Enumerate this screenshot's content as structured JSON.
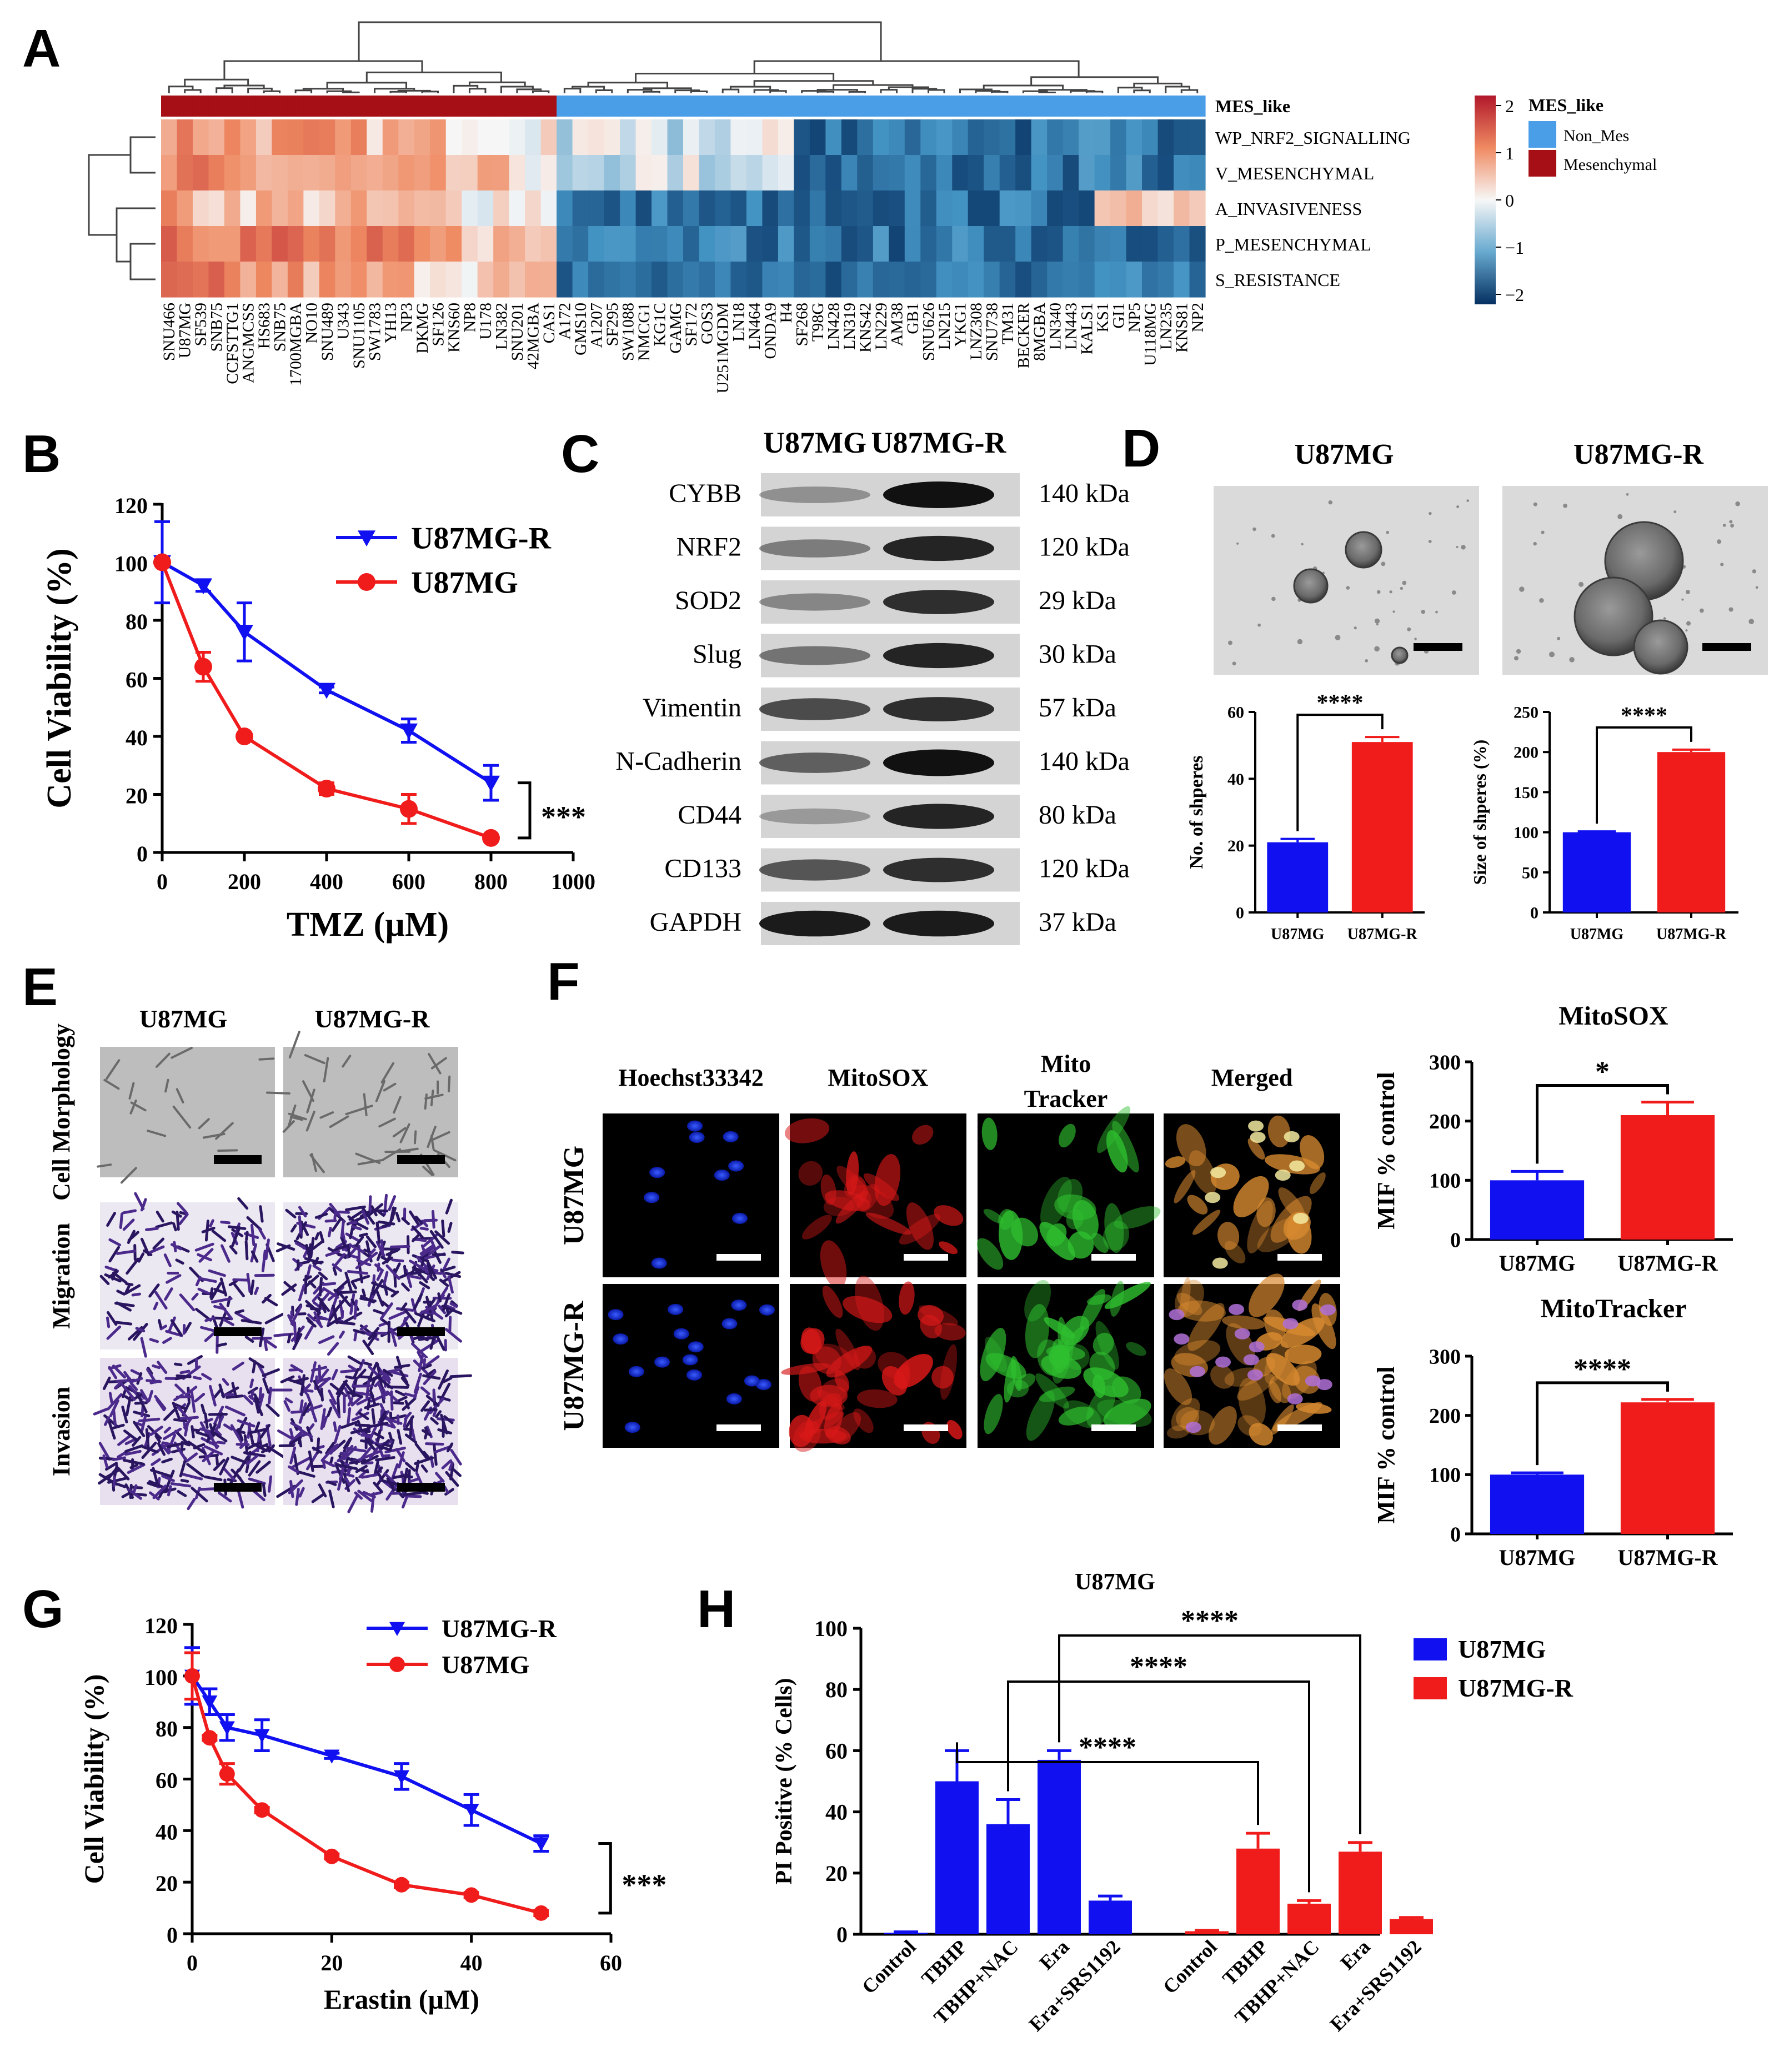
{
  "panels": {
    "A": "A",
    "B": "B",
    "C": "C",
    "D": "D",
    "E": "E",
    "F": "F",
    "G": "G",
    "H": "H"
  },
  "colors": {
    "blue": "#1010f0",
    "red": "#f01c1c",
    "heat_high": "#b2182b",
    "heat_mid": "#f7f7f7",
    "heat_low": "#053061",
    "mes_bar": "#a50f15",
    "nonmes_bar": "#4a9ee8"
  },
  "heatmap": {
    "annotation_label": "MES_like",
    "rows": [
      "WP_NRF2_SIGNALLING",
      "V_MESENCHYMAL",
      "A_INVASIVENESS",
      "P_MESENCHYMAL",
      "S_RESISTANCE"
    ],
    "columns": [
      "SNU466",
      "U87MG",
      "SF539",
      "SNB75",
      "CCFSTTG1",
      "ANGMCSS",
      "HS683",
      "SNB75",
      "1700MGBA",
      "NO10",
      "SNU489",
      "U343",
      "SNU1105",
      "SW1783",
      "YH13",
      "NP3",
      "DKMG",
      "SF126",
      "KNS60",
      "NP8",
      "U178",
      "LN382",
      "SNU201",
      "42MGBA",
      "CAS1",
      "A172",
      "GMS10",
      "A1207",
      "SF295",
      "SW1088",
      "NMCG1",
      "KG1C",
      "GAMG",
      "SF172",
      "GOS3",
      "U251MGDM",
      "LN18",
      "LN464",
      "ONDA9",
      "H4",
      "SF268",
      "T98G",
      "LN428",
      "LN319",
      "KNS42",
      "LN229",
      "AM38",
      "GB1",
      "SNU626",
      "LN215",
      "YKG1",
      "LNZ308",
      "SNU738",
      "TM31",
      "BECKER",
      "8MGBA",
      "LN340",
      "LN443",
      "KALS1",
      "KS1",
      "GI1",
      "NP5",
      "U118MG",
      "LN235",
      "KNS81",
      "NP2"
    ],
    "n_mesenchymal": 25,
    "legend_title": "MES_like",
    "legend_items": [
      "Non_Mes",
      "Mesenchymal"
    ],
    "colorbar_ticks": [
      "2",
      "1",
      "0",
      "−1",
      "−2"
    ]
  },
  "western": {
    "col_labels": [
      "U87MG",
      "U87MG-R"
    ],
    "proteins": [
      "CYBB",
      "NRF2",
      "SOD2",
      "Slug",
      "Vimentin",
      "N-Cadherin",
      "CD44",
      "CD133",
      "GAPDH"
    ],
    "sizes": [
      "140 kDa",
      "120 kDa",
      "29 kDa",
      "30 kDa",
      "57 kDa",
      "140 kDa",
      "80 kDa",
      "120 kDa",
      "37 kDa"
    ]
  },
  "sphere": {
    "col_labels": [
      "U87MG",
      "U87MG-R"
    ]
  },
  "panel_e": {
    "col_labels": [
      "U87MG",
      "U87MG-R"
    ],
    "row_labels": [
      "Cell Morphology",
      "Migration",
      "Invasion"
    ]
  },
  "panel_f": {
    "col_labels": [
      "Hoechst33342",
      "MitoSOX",
      "Mito Tracker",
      "Merged"
    ],
    "row_labels": [
      "U87MG",
      "U87MG-R"
    ]
  },
  "chart_data": [
    {
      "panel": "B",
      "type": "line",
      "xlabel": "TMZ (µM)",
      "ylabel": "Cell Viability (%)",
      "xlim": [
        0,
        1000
      ],
      "ylim": [
        0,
        120
      ],
      "xticks": [
        0,
        200,
        400,
        600,
        800,
        1000
      ],
      "yticks": [
        0,
        20,
        40,
        60,
        80,
        100,
        120
      ],
      "legend": "top-right",
      "significance": "***",
      "series": [
        {
          "name": "U87MG-R",
          "color": "#1010f0",
          "marker": "triangle-down",
          "x": [
            0,
            100,
            200,
            400,
            600,
            800
          ],
          "y": [
            100,
            92,
            76,
            56,
            42,
            24
          ],
          "err": [
            14,
            2,
            10,
            1,
            4,
            6
          ]
        },
        {
          "name": "U87MG",
          "color": "#f01c1c",
          "marker": "circle",
          "x": [
            0,
            100,
            200,
            400,
            600,
            800
          ],
          "y": [
            100,
            64,
            40,
            22,
            15,
            5
          ],
          "err": [
            1,
            5,
            1,
            2,
            5,
            1
          ]
        }
      ]
    },
    {
      "panel": "D-left",
      "type": "bar",
      "categories": [
        "U87MG",
        "U87MG-R"
      ],
      "values": [
        21,
        51
      ],
      "errors": [
        1,
        1.5
      ],
      "ylabel": "No. of shperes",
      "ylim": [
        0,
        60
      ],
      "yticks": [
        0,
        20,
        40,
        60
      ],
      "significance": "****"
    },
    {
      "panel": "D-right",
      "type": "bar",
      "categories": [
        "U87MG",
        "U87MG-R"
      ],
      "values": [
        100,
        200
      ],
      "errors": [
        1,
        3
      ],
      "ylabel": "Size of shperes (%)",
      "ylim": [
        0,
        250
      ],
      "yticks": [
        0,
        50,
        100,
        150,
        200,
        250
      ],
      "significance": "****"
    },
    {
      "panel": "F-top",
      "type": "bar",
      "title": "MitoSOX",
      "categories": [
        "U87MG",
        "U87MG-R"
      ],
      "values": [
        100,
        210
      ],
      "errors": [
        15,
        22
      ],
      "ylabel": "MIF % control",
      "ylim": [
        0,
        300
      ],
      "yticks": [
        0,
        100,
        200,
        300
      ],
      "significance": "*"
    },
    {
      "panel": "F-bottom",
      "type": "bar",
      "title": "MitoTracker",
      "categories": [
        "U87MG",
        "U87MG-R"
      ],
      "values": [
        100,
        222
      ],
      "errors": [
        3,
        5
      ],
      "ylabel": "MIF % control",
      "ylim": [
        0,
        300
      ],
      "yticks": [
        0,
        100,
        200,
        300
      ],
      "significance": "****"
    },
    {
      "panel": "G",
      "type": "line",
      "xlabel": "Erastin (µM)",
      "ylabel": "Cell Viability (%)",
      "xlim": [
        0,
        60
      ],
      "ylim": [
        0,
        120
      ],
      "xticks": [
        0,
        20,
        40,
        60
      ],
      "yticks": [
        0,
        20,
        40,
        60,
        80,
        100,
        120
      ],
      "legend": "top-right",
      "significance": "***",
      "series": [
        {
          "name": "U87MG-R",
          "color": "#1010f0",
          "marker": "triangle-down",
          "x": [
            0,
            2.5,
            5,
            10,
            20,
            30,
            40,
            50
          ],
          "y": [
            100,
            90,
            80,
            77,
            69,
            61,
            48,
            35
          ],
          "err": [
            11,
            5,
            5,
            6,
            1,
            5,
            6,
            3
          ]
        },
        {
          "name": "U87MG",
          "color": "#f01c1c",
          "marker": "circle",
          "x": [
            0,
            2.5,
            5,
            10,
            20,
            30,
            40,
            50
          ],
          "y": [
            100,
            76,
            62,
            48,
            30,
            19,
            15,
            8
          ],
          "err": [
            9,
            1,
            4,
            1,
            1,
            1,
            1,
            1
          ]
        }
      ]
    },
    {
      "panel": "H",
      "type": "bar",
      "title": "U87MG",
      "categories": [
        "Control",
        "TBHP",
        "TBHP+NAC",
        "Era",
        "Era+SRS1192"
      ],
      "ylabel": "PI Positive (% Cells)",
      "ylim": [
        0,
        100
      ],
      "yticks": [
        0,
        20,
        40,
        60,
        80,
        100
      ],
      "legend": "top-right",
      "series": [
        {
          "name": "U87MG",
          "color": "#1010f0",
          "values": [
            0.5,
            50,
            36,
            57,
            11
          ],
          "errors": [
            0.3,
            10,
            8,
            3,
            1.5
          ]
        },
        {
          "name": "U87MG-R",
          "color": "#f01c1c",
          "values": [
            1,
            28,
            10,
            27,
            5
          ],
          "errors": [
            0.3,
            5,
            1,
            3,
            0.5
          ]
        }
      ],
      "significance": [
        "****",
        "****",
        "****"
      ]
    }
  ]
}
